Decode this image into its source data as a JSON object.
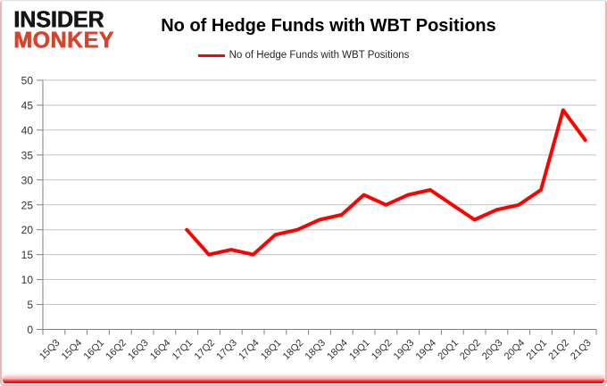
{
  "logo": {
    "line1": "INSIDER",
    "line2": "MONKEY"
  },
  "colors": {
    "series_line": "#ff0000",
    "logo_black": "#151515",
    "logo_red": "#d8432c",
    "grid": "#c2c2c2",
    "axis": "#808080",
    "tick_label": "#303030",
    "title_text": "#000000",
    "bottom_bar": "#ff0000",
    "frame_border": "#f4b6b0"
  },
  "chart_data": {
    "type": "line",
    "title": "No of Hedge Funds with WBT Positions",
    "xlabel": "",
    "ylabel": "",
    "ylim": [
      0,
      50
    ],
    "ytick_step": 5,
    "grid": true,
    "legend_position": "top",
    "categories": [
      "15Q3",
      "15Q4",
      "16Q1",
      "16Q2",
      "16Q3",
      "16Q4",
      "17Q1",
      "17Q2",
      "17Q3",
      "17Q4",
      "18Q1",
      "18Q2",
      "18Q3",
      "18Q4",
      "19Q1",
      "19Q2",
      "19Q3",
      "19Q4",
      "20Q1",
      "20Q2",
      "20Q3",
      "20Q4",
      "21Q1",
      "21Q2",
      "21Q3"
    ],
    "series": [
      {
        "name": "No of Hedge Funds with WBT Positions",
        "color": "#ff0000",
        "values": [
          null,
          null,
          null,
          null,
          null,
          null,
          20,
          15,
          16,
          15,
          19,
          20,
          22,
          23,
          27,
          25,
          27,
          28,
          25,
          22,
          24,
          25,
          28,
          44,
          38
        ]
      }
    ]
  }
}
